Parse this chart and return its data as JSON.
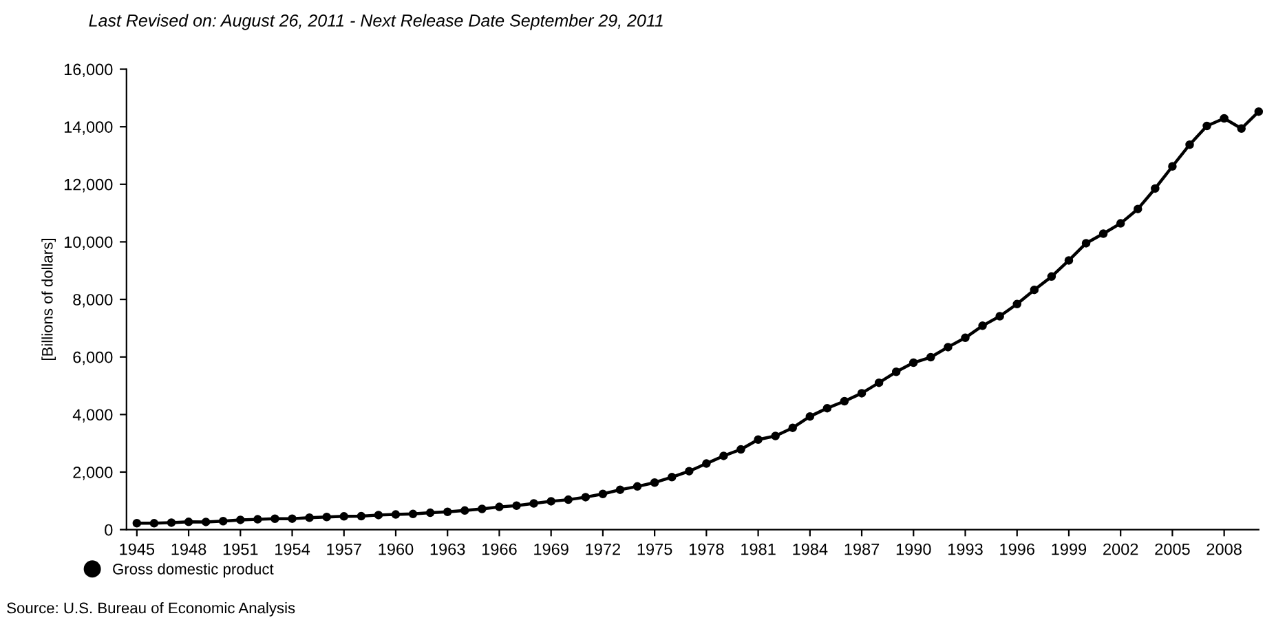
{
  "chart_data": {
    "type": "line",
    "title": "Last Revised on: August 26, 2011 - Next Release Date September 29, 2011",
    "ylabel": "[Billions of dollars]",
    "annotations": [
      "Source: U.S. Bureau of Economic Analysis"
    ],
    "x": [
      1945,
      1946,
      1947,
      1948,
      1949,
      1950,
      1951,
      1952,
      1953,
      1954,
      1955,
      1956,
      1957,
      1958,
      1959,
      1960,
      1961,
      1962,
      1963,
      1964,
      1965,
      1966,
      1967,
      1968,
      1969,
      1970,
      1971,
      1972,
      1973,
      1974,
      1975,
      1976,
      1977,
      1978,
      1979,
      1980,
      1981,
      1982,
      1983,
      1984,
      1985,
      1986,
      1987,
      1988,
      1989,
      1990,
      1991,
      1992,
      1993,
      1994,
      1995,
      1996,
      1997,
      1998,
      1999,
      2000,
      2001,
      2002,
      2003,
      2004,
      2005,
      2006,
      2007,
      2008,
      2009,
      2010
    ],
    "series": [
      {
        "name": "Gross domestic product",
        "color": "#000000",
        "values": [
          223,
          222,
          244,
          269,
          267,
          294,
          339,
          358,
          379,
          381,
          415,
          438,
          461,
          467,
          507,
          527,
          545,
          586,
          618,
          664,
          720,
          789,
          834,
          911,
          985,
          1040,
          1128,
          1240,
          1385,
          1501,
          1635,
          1824,
          2031,
          2295,
          2563,
          2789,
          3128,
          3255,
          3537,
          3933,
          4220,
          4463,
          4740,
          5104,
          5484,
          5801,
          5992,
          6342,
          6667,
          7085,
          7415,
          7839,
          8332,
          8794,
          9354,
          9952,
          10286,
          10642,
          11142,
          11853,
          12623,
          13377,
          14029,
          14292,
          13939,
          14527
        ]
      }
    ],
    "xlim": [
      1944.4,
      2010
    ],
    "xticks": [
      1945,
      1948,
      1951,
      1954,
      1957,
      1960,
      1963,
      1966,
      1969,
      1972,
      1975,
      1978,
      1981,
      1984,
      1987,
      1990,
      1993,
      1996,
      1999,
      2002,
      2005,
      2008
    ],
    "ylim": [
      0,
      16000
    ],
    "yticks": [
      {
        "value": 0,
        "label": "0"
      },
      {
        "value": 2000,
        "label": "2,000"
      },
      {
        "value": 4000,
        "label": "4,000"
      },
      {
        "value": 6000,
        "label": "6,000"
      },
      {
        "value": 8000,
        "label": "8,000"
      },
      {
        "value": 10000,
        "label": "10,000"
      },
      {
        "value": 12000,
        "label": "12,000"
      },
      {
        "value": 14000,
        "label": "14,000"
      },
      {
        "value": 16000,
        "label": "16,000"
      }
    ],
    "grid": false,
    "legend": "bottom left",
    "marker": "circle",
    "line_style": "solid"
  }
}
